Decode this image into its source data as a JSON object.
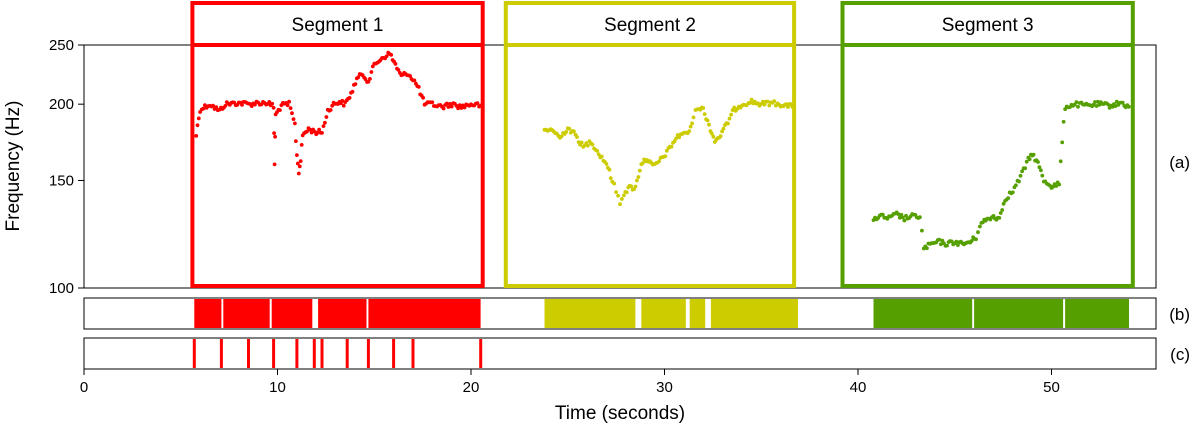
{
  "chart_data": {
    "type": "scatter",
    "xlabel": "Time (seconds)",
    "ylabel": "Frequency (Hz)",
    "xlim": [
      0,
      55.4
    ],
    "ylim": [
      100,
      250
    ],
    "yscale": "log",
    "x_ticks": [
      {
        "v": 0,
        "label": "0"
      },
      {
        "v": 10,
        "label": "10"
      },
      {
        "v": 20,
        "label": "20"
      },
      {
        "v": 30,
        "label": "30"
      },
      {
        "v": 40,
        "label": "40"
      },
      {
        "v": 50,
        "label": "50"
      }
    ],
    "y_ticks": [
      {
        "v": 100,
        "label": "100"
      },
      {
        "v": 150,
        "label": "150"
      },
      {
        "v": 200,
        "label": "200"
      },
      {
        "v": 250,
        "label": "250"
      }
    ],
    "panel_labels": [
      "(a)",
      "(b)",
      "(c)"
    ],
    "segments": [
      {
        "name": "Segment 1",
        "color": "#ff0000",
        "range": [
          5.6,
          20.6
        ],
        "contour": [
          [
            5.8,
            178
          ],
          [
            6.0,
            196
          ],
          [
            6.5,
            200
          ],
          [
            7.0,
            195
          ],
          [
            7.3,
            200
          ],
          [
            8.0,
            201
          ],
          [
            8.5,
            200
          ],
          [
            9.0,
            201
          ],
          [
            9.5,
            201
          ],
          [
            9.8,
            198
          ],
          [
            9.85,
            160
          ],
          [
            9.9,
            192
          ],
          [
            10.2,
            199
          ],
          [
            10.6,
            200
          ],
          [
            10.9,
            185
          ],
          [
            11.0,
            165
          ],
          [
            11.1,
            155
          ],
          [
            11.2,
            162
          ],
          [
            11.3,
            178
          ],
          [
            11.6,
            182
          ],
          [
            12.0,
            180
          ],
          [
            12.3,
            180
          ],
          [
            12.6,
            195
          ],
          [
            12.9,
            200
          ],
          [
            13.2,
            202
          ],
          [
            13.5,
            200
          ],
          [
            13.8,
            208
          ],
          [
            14.1,
            220
          ],
          [
            14.4,
            224
          ],
          [
            14.7,
            218
          ],
          [
            15.0,
            232
          ],
          [
            15.4,
            238
          ],
          [
            15.8,
            242
          ],
          [
            16.1,
            232
          ],
          [
            16.4,
            222
          ],
          [
            16.7,
            225
          ],
          [
            17.0,
            220
          ],
          [
            17.3,
            212
          ],
          [
            17.6,
            200
          ],
          [
            18.0,
            200
          ],
          [
            18.5,
            198
          ],
          [
            19.0,
            200
          ],
          [
            19.5,
            198
          ],
          [
            20.0,
            200
          ],
          [
            20.5,
            199
          ]
        ],
        "voiced": [
          [
            5.7,
            7.1
          ],
          [
            7.2,
            9.6
          ],
          [
            9.7,
            11.8
          ],
          [
            12.1,
            14.6
          ],
          [
            14.7,
            20.5
          ]
        ],
        "onsets": [
          5.7,
          7.1,
          8.5,
          9.8,
          11.0,
          11.9,
          12.3,
          13.6,
          14.7,
          16.0,
          17.0,
          20.5
        ]
      },
      {
        "name": "Segment 2",
        "color": "#cccc00",
        "range": [
          21.8,
          36.7
        ],
        "contour": [
          [
            23.8,
            180
          ],
          [
            24.2,
            182
          ],
          [
            24.6,
            176
          ],
          [
            25.0,
            183
          ],
          [
            25.4,
            178
          ],
          [
            25.8,
            170
          ],
          [
            26.2,
            174
          ],
          [
            26.6,
            166
          ],
          [
            27.0,
            160
          ],
          [
            27.3,
            150
          ],
          [
            27.5,
            144
          ],
          [
            27.7,
            138
          ],
          [
            27.9,
            143
          ],
          [
            28.2,
            146
          ],
          [
            28.5,
            146
          ],
          [
            28.8,
            160
          ],
          [
            29.1,
            163
          ],
          [
            29.4,
            158
          ],
          [
            29.8,
            162
          ],
          [
            30.2,
            168
          ],
          [
            30.6,
            176
          ],
          [
            31.0,
            180
          ],
          [
            31.2,
            178
          ],
          [
            31.5,
            190
          ],
          [
            31.7,
            198
          ],
          [
            32.0,
            196
          ],
          [
            32.3,
            185
          ],
          [
            32.6,
            174
          ],
          [
            32.9,
            178
          ],
          [
            33.2,
            185
          ],
          [
            33.6,
            196
          ],
          [
            34.0,
            200
          ],
          [
            34.5,
            202
          ],
          [
            35.0,
            200
          ],
          [
            35.5,
            201
          ],
          [
            36.0,
            200
          ],
          [
            36.6,
            198
          ]
        ],
        "voiced": [
          [
            23.8,
            28.5
          ],
          [
            28.8,
            31.1
          ],
          [
            31.3,
            32.1
          ],
          [
            32.4,
            36.9
          ]
        ]
      },
      {
        "name": "Segment 3",
        "color": "#55a000",
        "range": [
          39.2,
          54.2
        ],
        "contour": [
          [
            40.8,
            130
          ],
          [
            41.2,
            131
          ],
          [
            41.6,
            130
          ],
          [
            42.0,
            132
          ],
          [
            42.4,
            130
          ],
          [
            42.8,
            131
          ],
          [
            43.2,
            131
          ],
          [
            43.4,
            116
          ],
          [
            43.8,
            118
          ],
          [
            44.2,
            119
          ],
          [
            44.6,
            118
          ],
          [
            45.0,
            119
          ],
          [
            45.4,
            118
          ],
          [
            45.8,
            119
          ],
          [
            46.1,
            121
          ],
          [
            46.3,
            127
          ],
          [
            46.6,
            129
          ],
          [
            47.0,
            131
          ],
          [
            47.3,
            130
          ],
          [
            47.6,
            140
          ],
          [
            48.0,
            144
          ],
          [
            48.4,
            152
          ],
          [
            48.8,
            162
          ],
          [
            49.0,
            166
          ],
          [
            49.3,
            160
          ],
          [
            49.6,
            150
          ],
          [
            50.0,
            147
          ],
          [
            50.4,
            148
          ],
          [
            50.7,
            198
          ],
          [
            51.2,
            200
          ],
          [
            51.8,
            199
          ],
          [
            52.4,
            200
          ],
          [
            53.0,
            199
          ],
          [
            53.6,
            201
          ],
          [
            54.0,
            198
          ]
        ],
        "voiced": [
          [
            40.8,
            45.9
          ],
          [
            46.0,
            50.6
          ],
          [
            50.7,
            54.0
          ]
        ]
      }
    ]
  }
}
